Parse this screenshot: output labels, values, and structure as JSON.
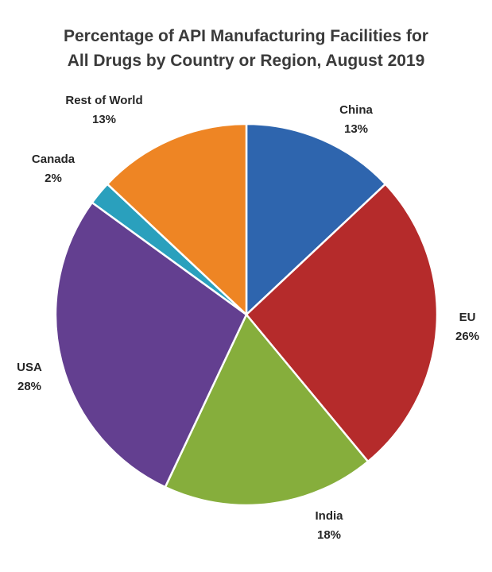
{
  "chart_data": {
    "type": "pie",
    "title": "Percentage of API Manufacturing Facilities for All Drugs by Country or Region, August 2019",
    "title_lines": [
      "Percentage of API Manufacturing Facilities for",
      "All Drugs by Country or Region, August 2019"
    ],
    "start_angle": "12 o'clock, clockwise",
    "categories": [
      "China",
      "EU",
      "India",
      "USA",
      "Canada",
      "Rest of World"
    ],
    "values": [
      13,
      26,
      18,
      28,
      2,
      13
    ],
    "unit": "%",
    "colors": [
      "#2e65ae",
      "#b52b2b",
      "#86ae3c",
      "#633f90",
      "#2aa0bd",
      "#ee8524"
    ],
    "labels": [
      {
        "name": "China",
        "pct": "13%"
      },
      {
        "name": "EU",
        "pct": "26%"
      },
      {
        "name": "India",
        "pct": "18%"
      },
      {
        "name": "USA",
        "pct": "28%"
      },
      {
        "name": "Canada",
        "pct": "2%"
      },
      {
        "name": "Rest of World",
        "pct": "13%"
      }
    ],
    "legend": "none (data labels outside slices)"
  }
}
